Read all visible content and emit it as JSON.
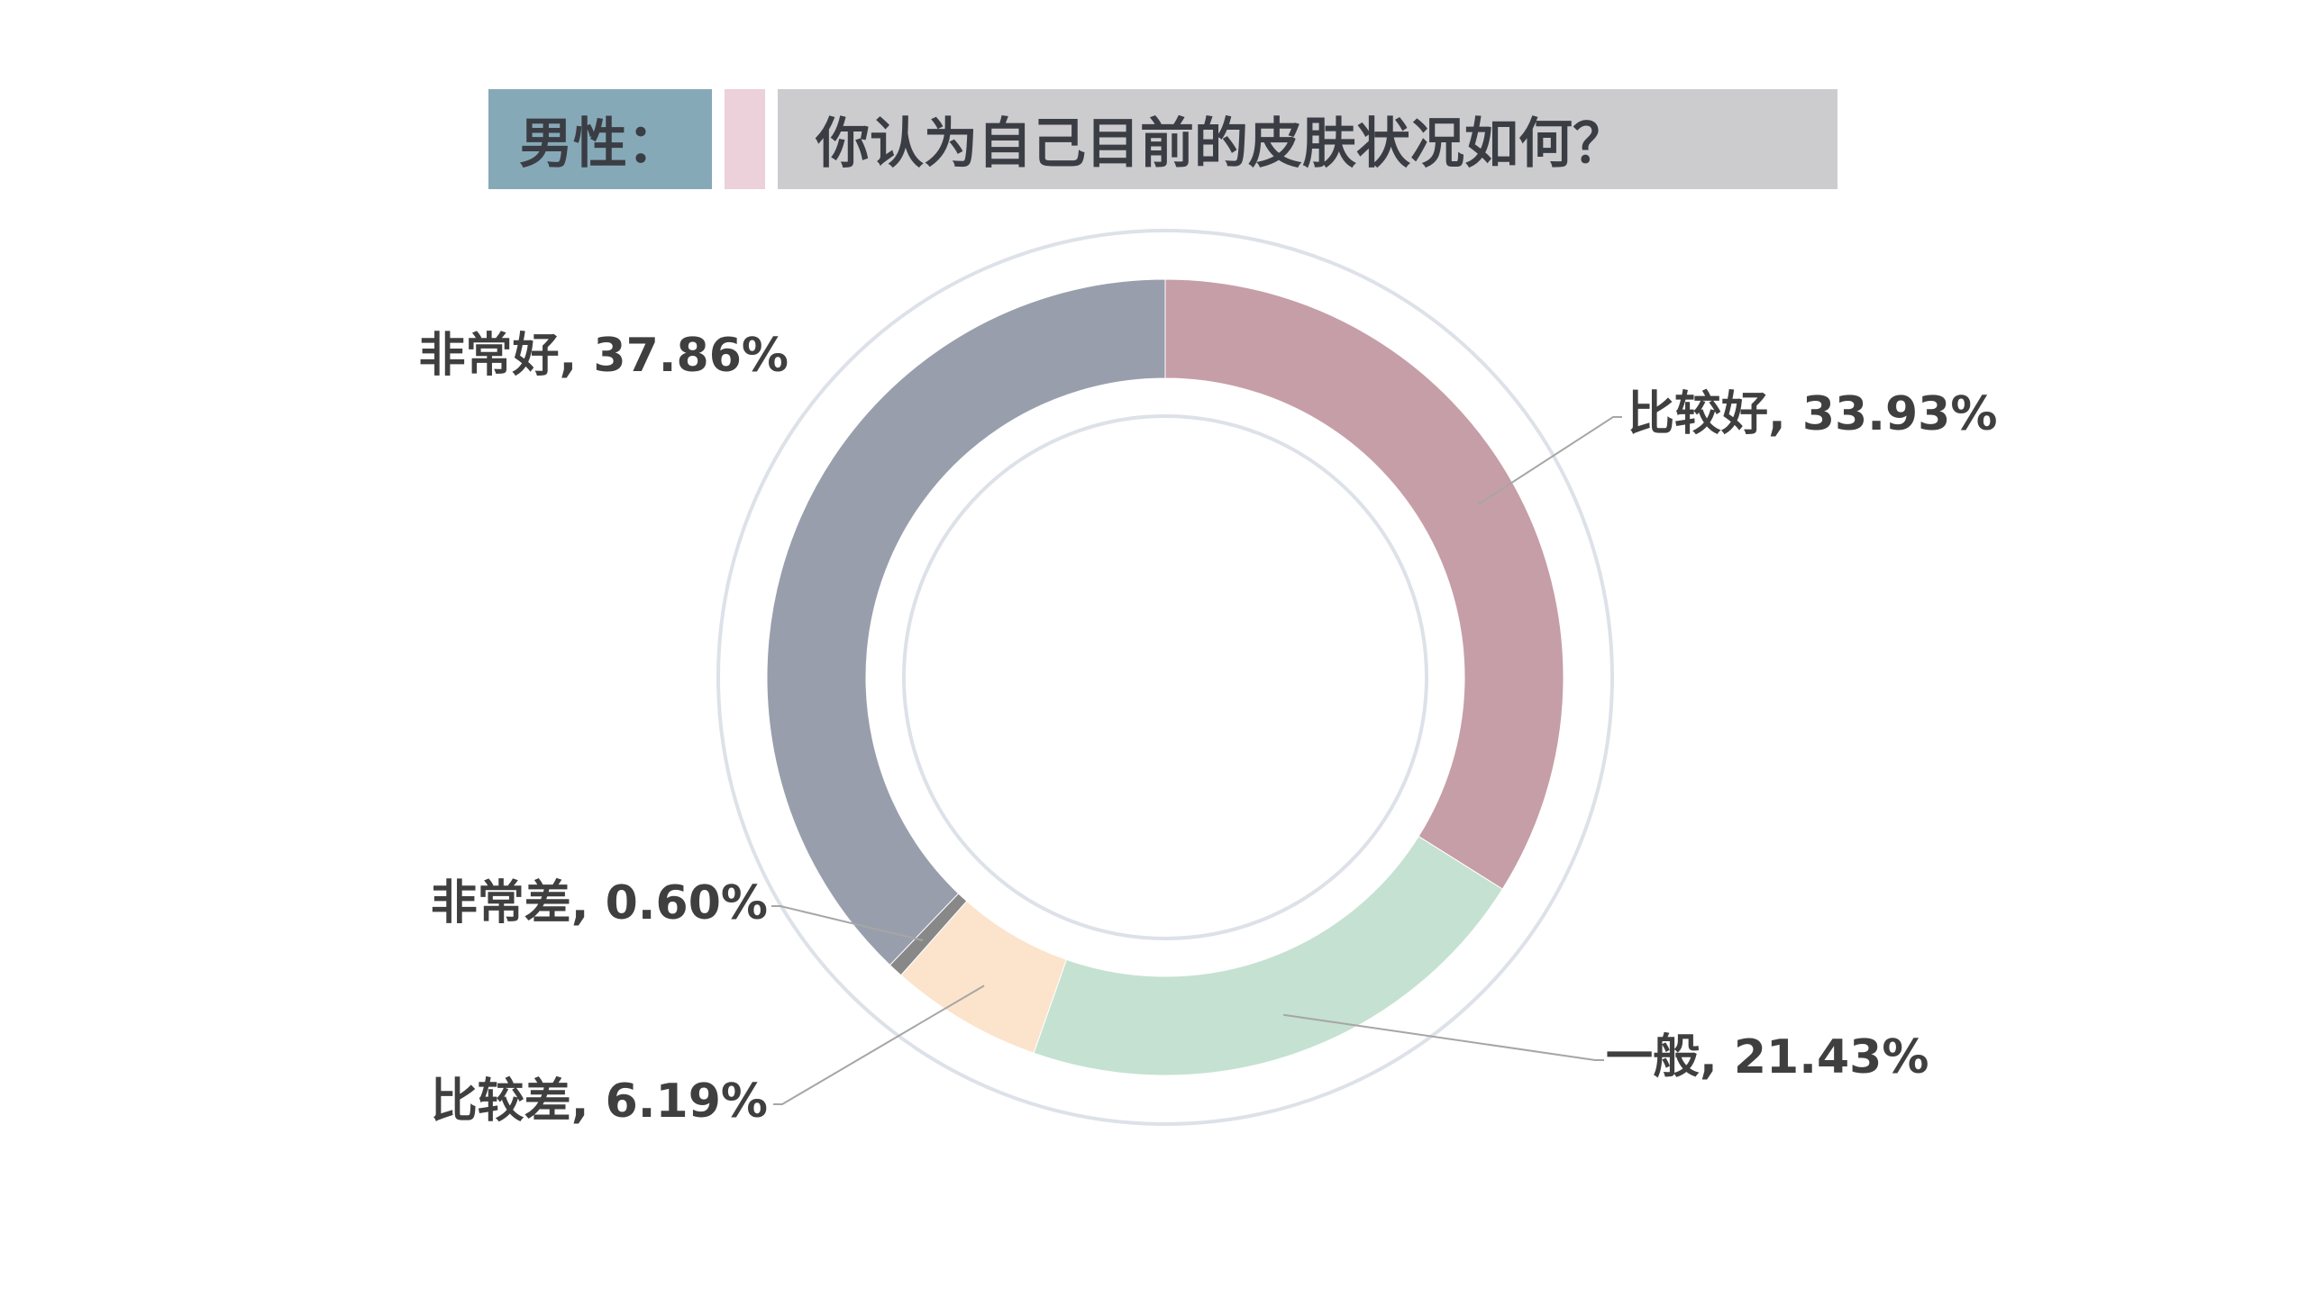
{
  "header": {
    "prefix": "男性：",
    "question": "你认为自己目前的皮肤状况如何？"
  },
  "colors": {
    "prefix_bg": "#86a9b8",
    "accent_bg": "#ecd0da",
    "question_bg": "#cccbce",
    "ring_outline": "#dde1e8",
    "leader_line": "#a6a6a6"
  },
  "chart_data": {
    "type": "pie",
    "variant": "donut",
    "categories": [
      "比较好",
      "一般",
      "比较差",
      "非常差",
      "非常好"
    ],
    "values": [
      33.93,
      21.43,
      6.19,
      0.6,
      37.86
    ],
    "unit": "%",
    "labels": [
      "比较好, 33.93%",
      "一般, 21.43%",
      "比较差, 6.19%",
      "非常差, 0.60%",
      "非常好, 37.86%"
    ],
    "colors": [
      "#c69ea7",
      "#c5e1d1",
      "#fce3cc",
      "#888888",
      "#989eac"
    ],
    "start": "12 o'clock",
    "direction": "clockwise"
  }
}
